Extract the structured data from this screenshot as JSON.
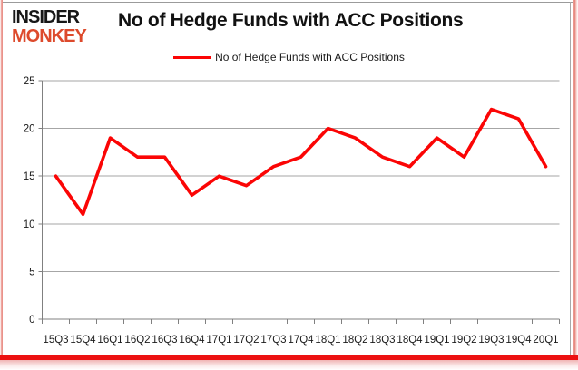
{
  "brand": {
    "line1": "INSIDER",
    "line2": "MONKEY",
    "line1_color": "#171717",
    "line2_color": "#dd4a2c"
  },
  "title": "No of Hedge Funds with ACC Positions",
  "legend": {
    "label": "No of Hedge Funds with ACC Positions",
    "swatch_color": "#fb0505"
  },
  "chart_data": {
    "type": "line",
    "title": "No of Hedge Funds with ACC Positions",
    "categories": [
      "15Q3",
      "15Q4",
      "16Q1",
      "16Q2",
      "16Q3",
      "16Q4",
      "17Q1",
      "17Q2",
      "17Q3",
      "17Q4",
      "18Q1",
      "18Q2",
      "18Q3",
      "18Q4",
      "19Q1",
      "19Q2",
      "19Q3",
      "19Q4",
      "20Q1"
    ],
    "values": [
      15,
      11,
      19,
      17,
      17,
      13,
      15,
      14,
      16,
      17,
      20,
      19,
      17,
      16,
      19,
      17,
      22,
      21,
      16
    ],
    "xlabel": "",
    "ylabel": "",
    "ylim": [
      0,
      25
    ],
    "yticks": [
      0,
      5,
      10,
      15,
      20,
      25
    ],
    "grid": true,
    "legend_position": "top",
    "line_color": "#fb0505",
    "gridline_color": "#a6a6a6",
    "axis_color": "#808080",
    "tick_label_color": "#1a1a1a"
  }
}
